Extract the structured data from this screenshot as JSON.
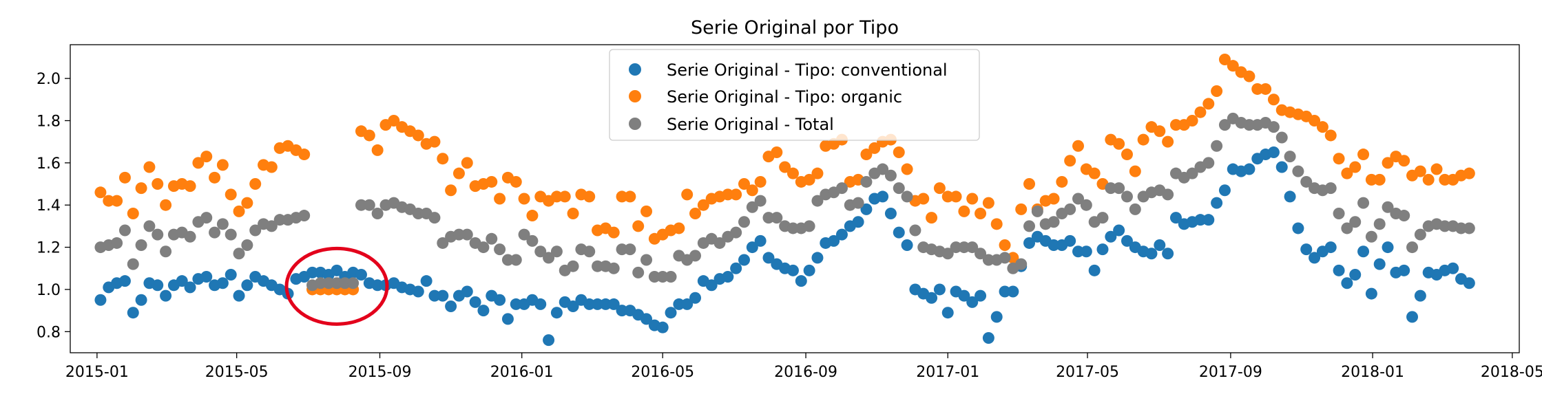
{
  "chart_data": {
    "type": "scatter",
    "title": "Serie Original por Tipo",
    "xlabel": "",
    "ylabel": "",
    "xlim": [
      "2014-12-09",
      "2018-05-07"
    ],
    "ylim": [
      0.7,
      2.16
    ],
    "x_ticks": [
      "2015-01",
      "2015-05",
      "2015-09",
      "2016-01",
      "2016-05",
      "2016-09",
      "2017-01",
      "2017-05",
      "2017-09",
      "2018-01",
      "2018-05"
    ],
    "y_ticks": [
      "0.8",
      "1.0",
      "1.2",
      "1.4",
      "1.6",
      "1.8",
      "2.0"
    ],
    "legend_position": "top-center",
    "grid": false,
    "start_date": "2015-01-04",
    "interval_days": 7,
    "series": [
      {
        "name": "Serie Original - Tipo: conventional",
        "color": "#1f77b4",
        "values": [
          0.95,
          1.01,
          1.03,
          1.04,
          0.89,
          0.95,
          1.03,
          1.02,
          0.97,
          1.02,
          1.04,
          1.01,
          1.05,
          1.06,
          1.02,
          1.03,
          1.07,
          0.97,
          1.02,
          1.06,
          1.04,
          1.02,
          1.0,
          0.98,
          1.05,
          1.06,
          1.08,
          1.08,
          1.07,
          1.09,
          1.06,
          1.08,
          1.07,
          1.03,
          1.02,
          1.02,
          1.03,
          1.01,
          1.0,
          0.99,
          1.04,
          0.97,
          0.97,
          0.92,
          0.97,
          0.99,
          0.94,
          0.9,
          0.97,
          0.95,
          0.86,
          0.93,
          0.93,
          0.95,
          0.93,
          0.76,
          0.89,
          0.94,
          0.92,
          0.95,
          0.93,
          0.93,
          0.93,
          0.93,
          0.9,
          0.9,
          0.88,
          0.86,
          0.83,
          0.82,
          0.89,
          0.93,
          0.93,
          0.96,
          1.04,
          1.02,
          1.05,
          1.06,
          1.1,
          1.14,
          1.2,
          1.23,
          1.15,
          1.12,
          1.1,
          1.09,
          1.04,
          1.09,
          1.15,
          1.22,
          1.23,
          1.26,
          1.3,
          1.32,
          1.38,
          1.43,
          1.44,
          1.36,
          1.27,
          1.21,
          1.0,
          0.98,
          0.96,
          1.0,
          0.89,
          0.99,
          0.97,
          0.94,
          0.97,
          0.77,
          0.87,
          0.99,
          0.99,
          1.11,
          1.22,
          1.25,
          1.23,
          1.21,
          1.21,
          1.23,
          1.18,
          1.18,
          1.09,
          1.19,
          1.25,
          1.28,
          1.23,
          1.2,
          1.18,
          1.17,
          1.21,
          1.17,
          1.34,
          1.31,
          1.32,
          1.33,
          1.33,
          1.41,
          1.47,
          1.57,
          1.56,
          1.57,
          1.62,
          1.64,
          1.65,
          1.58,
          1.44,
          1.29,
          1.19,
          1.15,
          1.18,
          1.2,
          1.09,
          1.03,
          1.07,
          1.18,
          0.98,
          1.12,
          1.2,
          1.08,
          1.09,
          0.87,
          0.97,
          1.08,
          1.07,
          1.09,
          1.1,
          1.05,
          1.03
        ]
      },
      {
        "name": "Serie Original - Tipo: organic",
        "color": "#ff7f0e",
        "values": [
          1.46,
          1.42,
          1.42,
          1.53,
          1.36,
          1.48,
          1.58,
          1.5,
          1.4,
          1.49,
          1.5,
          1.49,
          1.6,
          1.63,
          1.53,
          1.59,
          1.45,
          1.37,
          1.41,
          1.5,
          1.59,
          1.58,
          1.67,
          1.68,
          1.66,
          1.64,
          1.0,
          1.0,
          1.0,
          1.0,
          1.0,
          1.0,
          1.75,
          1.73,
          1.66,
          1.78,
          1.8,
          1.77,
          1.75,
          1.73,
          1.69,
          1.7,
          1.62,
          1.47,
          1.55,
          1.6,
          1.49,
          1.5,
          1.51,
          1.43,
          1.53,
          1.51,
          1.43,
          1.35,
          1.44,
          1.42,
          1.44,
          1.44,
          1.36,
          1.45,
          1.44,
          1.28,
          1.29,
          1.27,
          1.44,
          1.44,
          1.3,
          1.37,
          1.24,
          1.26,
          1.28,
          1.29,
          1.45,
          1.36,
          1.4,
          1.43,
          1.44,
          1.45,
          1.45,
          1.5,
          1.47,
          1.51,
          1.63,
          1.65,
          1.58,
          1.55,
          1.51,
          1.52,
          1.55,
          1.68,
          1.69,
          1.71,
          1.51,
          1.52,
          1.64,
          1.67,
          1.7,
          1.71,
          1.65,
          1.57,
          1.42,
          1.43,
          1.34,
          1.48,
          1.44,
          1.44,
          1.37,
          1.43,
          1.36,
          1.41,
          1.31,
          1.21,
          1.15,
          1.38,
          1.5,
          1.38,
          1.42,
          1.43,
          1.51,
          1.61,
          1.68,
          1.57,
          1.55,
          1.5,
          1.71,
          1.69,
          1.64,
          1.56,
          1.71,
          1.77,
          1.75,
          1.7,
          1.78,
          1.78,
          1.8,
          1.84,
          1.88,
          1.94,
          2.09,
          2.06,
          2.03,
          2.01,
          1.95,
          1.95,
          1.9,
          1.85,
          1.84,
          1.83,
          1.82,
          1.8,
          1.77,
          1.73,
          1.62,
          1.55,
          1.58,
          1.64,
          1.52,
          1.52,
          1.6,
          1.63,
          1.61,
          1.54,
          1.56,
          1.52,
          1.57,
          1.52,
          1.52,
          1.54,
          1.55
        ]
      },
      {
        "name": "Serie Original - Total",
        "color": "#7f7f7f",
        "values": [
          1.2,
          1.21,
          1.22,
          1.28,
          1.12,
          1.21,
          1.3,
          1.26,
          1.18,
          1.26,
          1.27,
          1.25,
          1.32,
          1.34,
          1.27,
          1.31,
          1.26,
          1.17,
          1.21,
          1.28,
          1.31,
          1.3,
          1.33,
          1.33,
          1.34,
          1.35,
          1.02,
          1.03,
          1.03,
          1.03,
          1.03,
          1.03,
          1.4,
          1.4,
          1.36,
          1.4,
          1.41,
          1.39,
          1.38,
          1.36,
          1.36,
          1.34,
          1.22,
          1.25,
          1.26,
          1.26,
          1.22,
          1.2,
          1.24,
          1.19,
          1.14,
          1.14,
          1.26,
          1.23,
          1.18,
          1.15,
          1.18,
          1.09,
          1.11,
          1.19,
          1.18,
          1.11,
          1.11,
          1.1,
          1.19,
          1.19,
          1.08,
          1.14,
          1.06,
          1.06,
          1.06,
          1.16,
          1.14,
          1.16,
          1.22,
          1.24,
          1.22,
          1.25,
          1.27,
          1.32,
          1.39,
          1.42,
          1.34,
          1.34,
          1.3,
          1.29,
          1.29,
          1.3,
          1.42,
          1.45,
          1.46,
          1.48,
          1.4,
          1.41,
          1.51,
          1.55,
          1.57,
          1.54,
          1.48,
          1.44,
          1.28,
          1.2,
          1.19,
          1.18,
          1.17,
          1.2,
          1.2,
          1.2,
          1.17,
          1.14,
          1.14,
          1.15,
          1.1,
          1.12,
          1.3,
          1.37,
          1.31,
          1.32,
          1.36,
          1.38,
          1.43,
          1.4,
          1.32,
          1.34,
          1.48,
          1.48,
          1.44,
          1.38,
          1.44,
          1.46,
          1.47,
          1.45,
          1.55,
          1.53,
          1.55,
          1.58,
          1.6,
          1.68,
          1.78,
          1.81,
          1.79,
          1.78,
          1.78,
          1.79,
          1.77,
          1.72,
          1.63,
          1.56,
          1.51,
          1.48,
          1.47,
          1.48,
          1.36,
          1.29,
          1.32,
          1.41,
          1.25,
          1.31,
          1.39,
          1.36,
          1.35,
          1.2,
          1.26,
          1.3,
          1.31,
          1.3,
          1.3,
          1.29,
          1.29
        ]
      }
    ],
    "annotations": [
      {
        "type": "ellipse",
        "color": "#e3001b",
        "center_x": "2015-07-26",
        "center_y": 1.015
      }
    ]
  }
}
